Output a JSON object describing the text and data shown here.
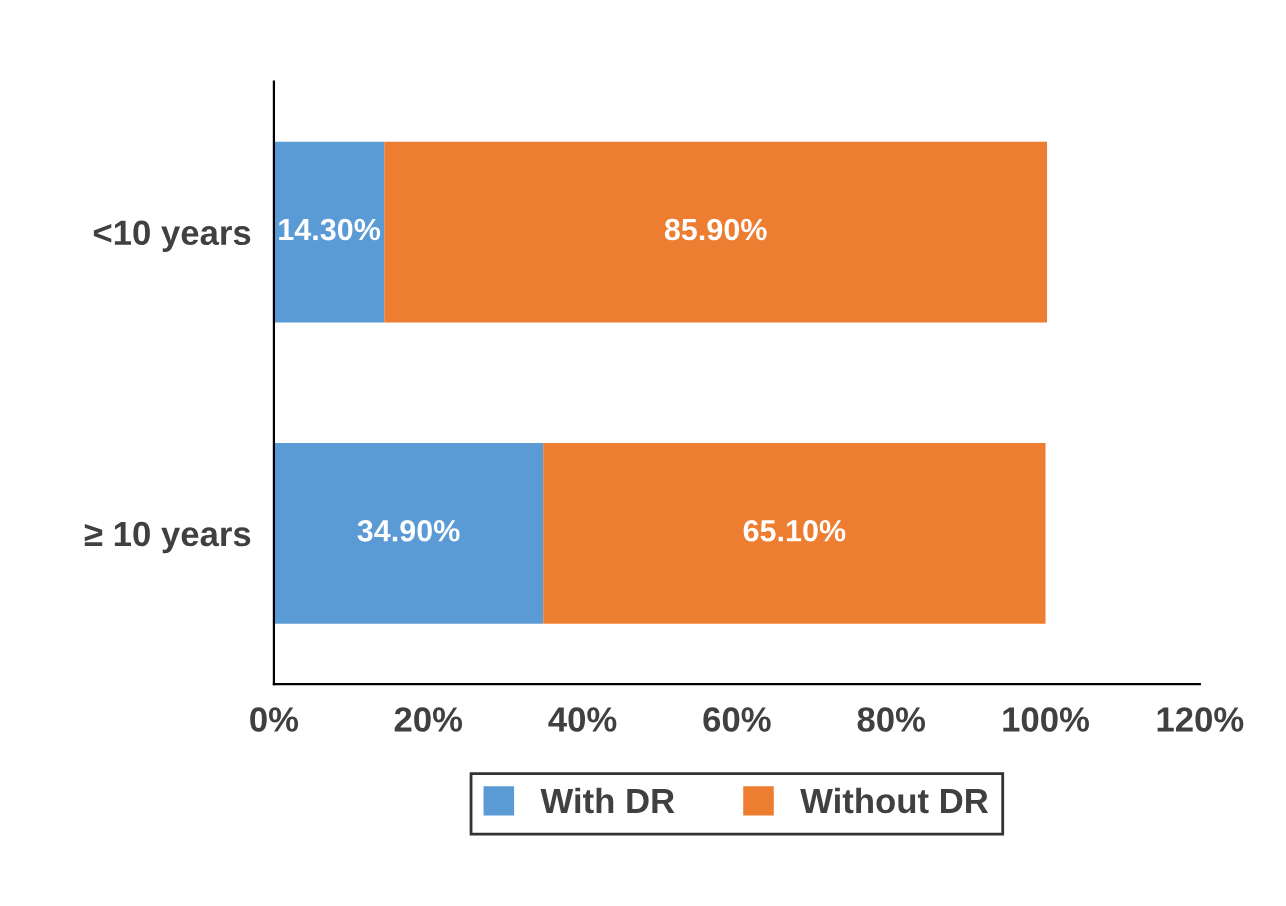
{
  "chart_data": {
    "type": "bar",
    "orientation": "horizontal",
    "stacked": true,
    "categories": [
      "<10 years",
      "≥ 10 years"
    ],
    "series": [
      {
        "name": "With DR",
        "color": "#5b9bd5",
        "values": [
          14.3,
          34.9
        ],
        "value_labels": [
          "14.30%",
          "34.90%"
        ]
      },
      {
        "name": "Without DR",
        "color": "#ed7d31",
        "values": [
          85.9,
          65.1
        ],
        "value_labels": [
          "85.90%",
          "65.10%"
        ]
      }
    ],
    "xlim": [
      0,
      120
    ],
    "xticks": [
      {
        "value": 0,
        "label": "0%"
      },
      {
        "value": 20,
        "label": "20%"
      },
      {
        "value": 40,
        "label": "40%"
      },
      {
        "value": 60,
        "label": "60%"
      },
      {
        "value": 80,
        "label": "80%"
      },
      {
        "value": 100,
        "label": "100%"
      },
      {
        "value": 120,
        "label": "120%"
      }
    ],
    "grid": false,
    "legend": "bottom"
  }
}
